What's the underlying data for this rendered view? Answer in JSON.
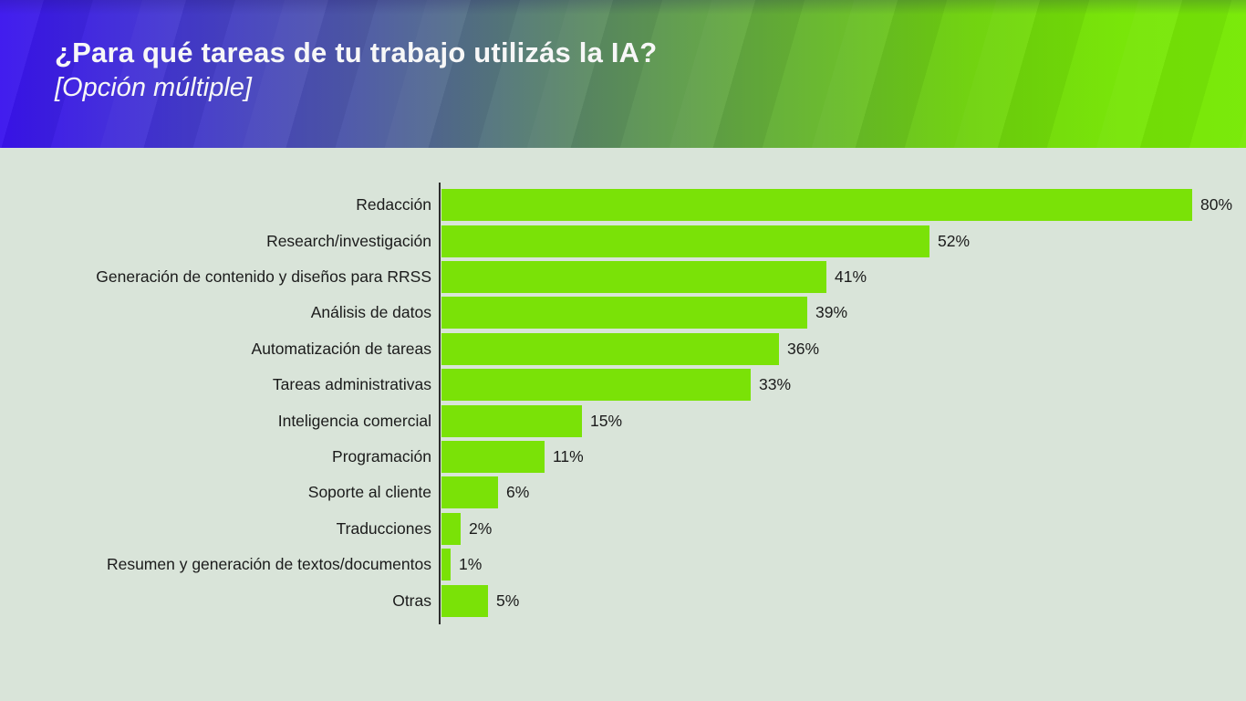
{
  "header": {
    "title": "¿Para qué tareas de tu trabajo utilizás la IA?",
    "subtitle": "[Opción múltiple]",
    "gradient_left_color": "#3a13ee",
    "gradient_right_color": "#78ea06",
    "text_color": "#f7f7f7"
  },
  "chart_data": {
    "type": "bar",
    "orientation": "horizontal",
    "title": "¿Para qué tareas de tu trabajo utilizás la IA? [Opción múltiple]",
    "xlabel": "",
    "ylabel": "",
    "xlim": [
      0,
      85
    ],
    "grid": false,
    "legend": false,
    "bar_color": "#7ae207",
    "background_color": "#d9e4d9",
    "axis_color": "#2d2d2d",
    "categories": [
      "Redacción",
      "Research/investigación",
      "Generación de contenido y diseños para RRSS",
      "Análisis de datos",
      "Automatización de tareas",
      "Tareas administrativas",
      "Inteligencia comercial",
      "Programación",
      "Soporte al cliente",
      "Traducciones",
      "Resumen y generación de textos/documentos",
      "Otras"
    ],
    "values": [
      80,
      52,
      41,
      39,
      36,
      33,
      15,
      11,
      6,
      2,
      1,
      5
    ],
    "value_labels": [
      "80%",
      "52%",
      "41%",
      "39%",
      "36%",
      "33%",
      "15%",
      "11%",
      "6%",
      "2%",
      "1%",
      "5%"
    ]
  }
}
